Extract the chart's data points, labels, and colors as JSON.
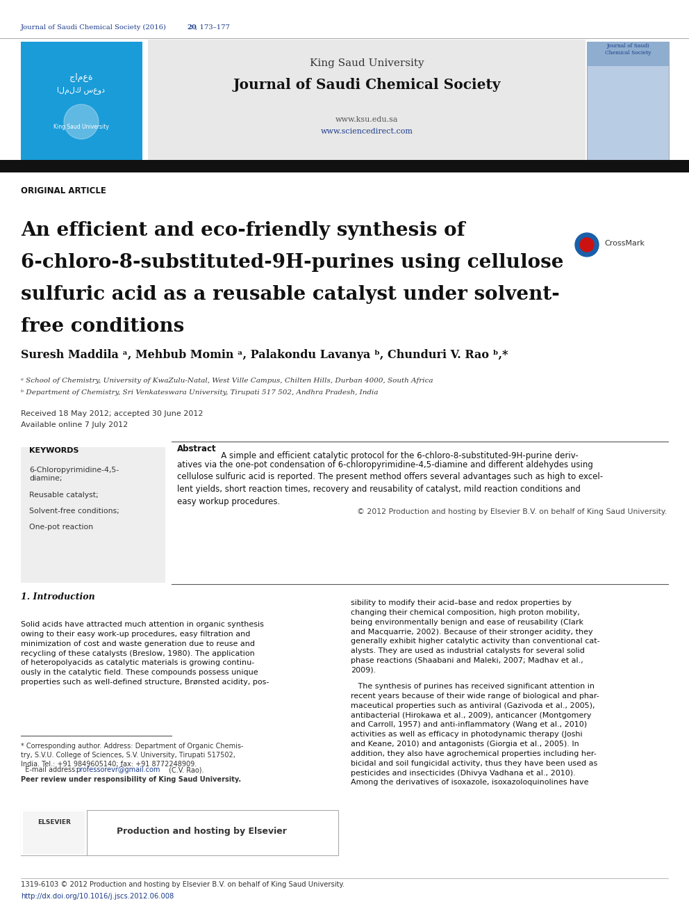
{
  "page_bg": "#ffffff",
  "header_journal_text": "Journal of Saudi Chemical Society (2016) 20, 173–177",
  "header_journal_color": "#1a3a8a",
  "header_banner_bg": "#e8e8e8",
  "header_uni_name": "King Saud University",
  "header_journal_name": "Journal of Saudi Chemical Society",
  "header_website1": "www.ksu.edu.sa",
  "header_website2": "www.sciencedirect.com",
  "black_bar_color": "#111111",
  "article_type": "ORIGINAL ARTICLE",
  "title_line1": "An efficient and eco-friendly synthesis of",
  "title_line2": "6-chloro-8-substituted-9H-purines using cellulose",
  "title_line3": "sulfuric acid as a reusable catalyst under solvent-",
  "title_line4": "free conditions",
  "authors": "Suresh Maddila ᵃ, Mehbub Momin ᵃ, Palakondu Lavanya ᵇ, Chunduri V. Rao ᵇ,*",
  "affil_a": "ᵃ School of Chemistry, University of KwaZulu-Natal, West Ville Campus, Chilten Hills, Durban 4000, South Africa",
  "affil_b": "ᵇ Department of Chemistry, Sri Venkateswara University, Tirupati 517 502, Andhra Pradesh, India",
  "received_text": "Received 18 May 2012; accepted 30 June 2012",
  "available_text": "Available online 7 July 2012",
  "keywords_title": "KEYWORDS",
  "keywords_list": [
    "6-Chloropyrimidine-4,5-\ndiamine;",
    "Reusable catalyst;",
    "Solvent-free conditions;",
    "One-pot reaction"
  ],
  "keywords_bg": "#eeeeee",
  "abstract_title": "Abstract",
  "abstract_body": "   A simple and efficient catalytic protocol for the 6-chloro-8-substituted-9H-purine deriv-\natives via the one-pot condensation of 6-chloropyrimidine-4,5-diamine and different aldehydes using\ncellulose sulfuric acid is reported. The present method offers several advantages such as high to excel-\nlent yields, short reaction times, recovery and reusability of catalyst, mild reaction conditions and\neasy workup procedures.",
  "copyright_text": "© 2012 Production and hosting by Elsevier B.V. on behalf of King Saud University.",
  "section1_title": "1. Introduction",
  "intro_col1_text": "Solid acids have attracted much attention in organic synthesis\nowing to their easy work-up procedures, easy filtration and\nminimization of cost and waste generation due to reuse and\nrecycling of these catalysts (Breslow, 1980). The application\nof heteropolyacids as catalytic materials is growing continu-\nously in the catalytic field. These compounds possess unique\nproperties such as well-defined structure, Brønsted acidity, pos-",
  "intro_col2_text": "sibility to modify their acid–base and redox properties by\nchanging their chemical composition, high proton mobility,\nbeing environmentally benign and ease of reusability (Clark\nand Macquarrie, 2002). Because of their stronger acidity, they\ngenerally exhibit higher catalytic activity than conventional cat-\nalysts. They are used as industrial catalysts for several solid\nphase reactions (Shaabani and Maleki, 2007; Madhav et al.,\n2009).",
  "intro_col2b_text": "   The synthesis of purines has received significant attention in\nrecent years because of their wide range of biological and phar-\nmaceutical properties such as antiviral (Gazivoda et al., 2005),\nantibacterial (Hirokawa et al., 2009), anticancer (Montgomery\nand Carroll, 1957) and anti-inflammatory (Wang et al., 2010)\nactivities as well as efficacy in photodynamic therapy (Joshi\nand Keane, 2010) and antagonists (Giorgia et al., 2005). In\naddition, they also have agrochemical properties including her-\nbicidal and soil fungicidal activity, thus they have been used as\npesticides and insecticides (Dhivya Vadhana et al., 2010).\nAmong the derivatives of isoxazole, isoxazoloquinolines have",
  "footnote_text": "* Corresponding author. Address: Department of Organic Chemis-\ntry, S.V.U. College of Sciences, S.V. University, Tirupati 517502,\nIndia. Tel.: +91 9849605140; fax: +91 8772248909.",
  "footnote_email_pre": "  E-mail address: ",
  "footnote_email": "professorevr@gmail.com",
  "footnote_email_post": " (C.V. Rao).",
  "footnote_peer": "Peer review under responsibility of King Saud University.",
  "elsevier_prod": "Production and hosting by Elsevier",
  "footer_issn": "1319-6103 © 2012 Production and hosting by Elsevier B.V. on behalf of King Saud University.",
  "footer_doi": "http://dx.doi.org/10.1016/j.jscs.2012.06.008",
  "link_color": "#1a3a8a",
  "text_color": "#111111"
}
